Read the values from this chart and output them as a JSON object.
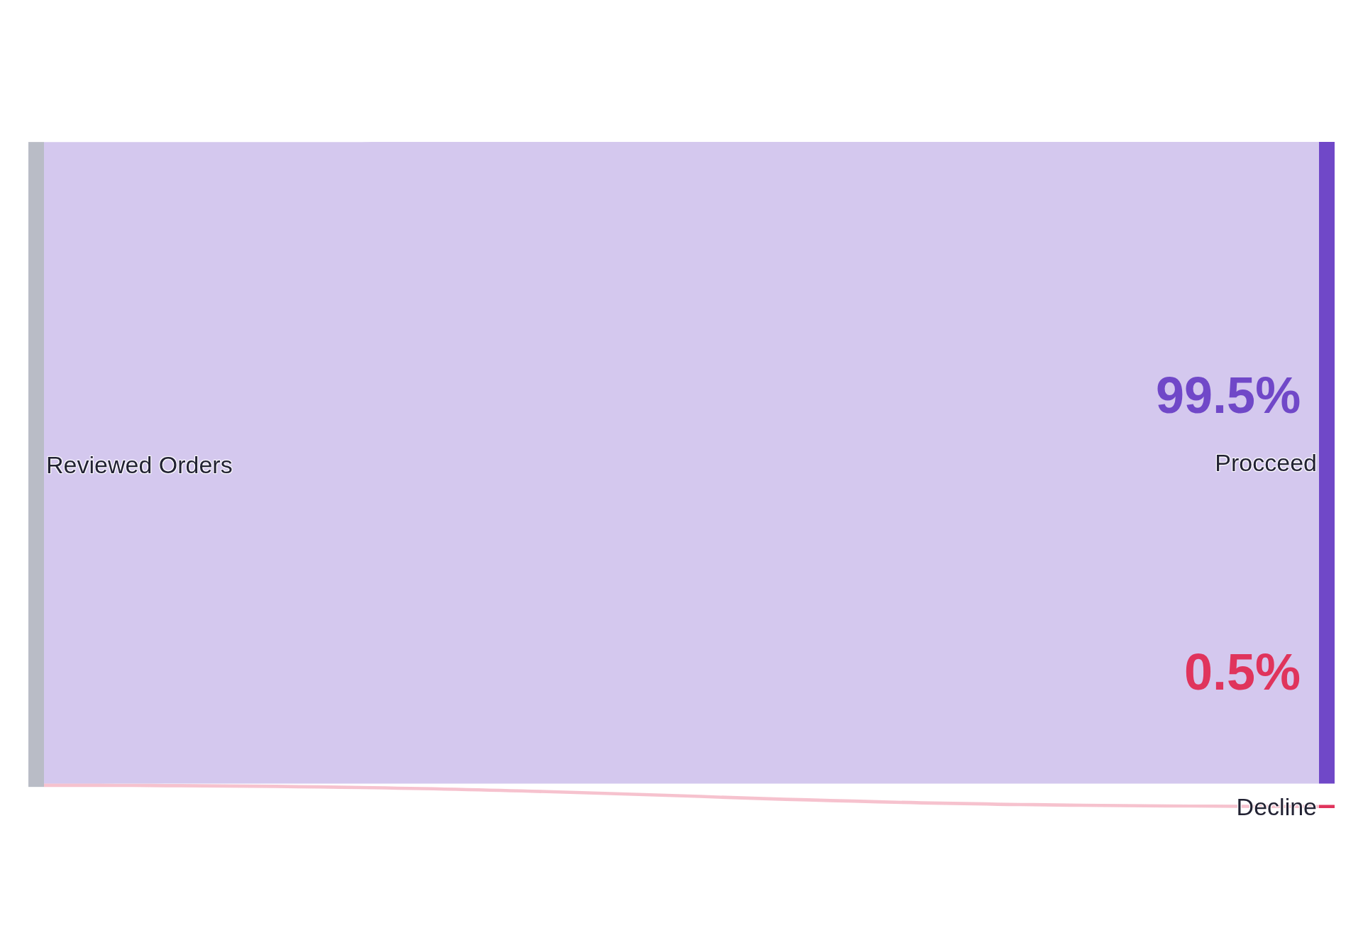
{
  "chart_data": {
    "type": "other",
    "annotations": [
      "Reviewed Orders"
    ],
    "categories": [
      "Procceed",
      "Decline"
    ],
    "values": [
      99.5,
      0.5
    ],
    "value_labels": [
      "99.5%",
      "0.5%"
    ],
    "colors": [
      "#7048c8",
      "#e0345c"
    ]
  }
}
